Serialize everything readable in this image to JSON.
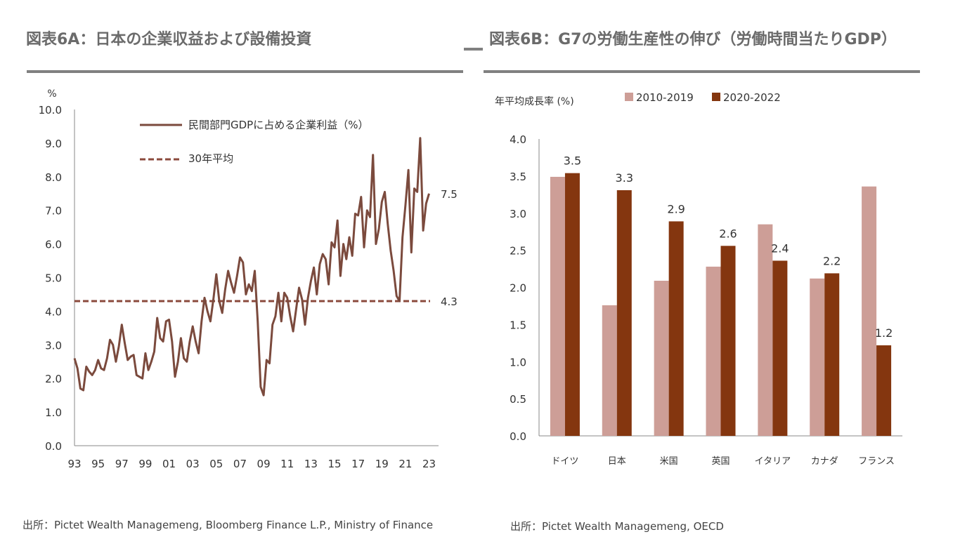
{
  "left_panel": {
    "title": "図表6A：日本の企業収益および設備投資",
    "source": "出所：Pictet Wealth Managemeng, Bloomberg Finance L.P., Ministry of Finance"
  },
  "right_panel": {
    "title": "図表6B：G7の労働生産性の伸び（労働時間当たりGDP）",
    "source": "出所：Pictet Wealth Managemeng, OECD"
  },
  "colors": {
    "line": "#7b4a3d",
    "avg": "#8b4a3c",
    "bar_light": "#cd9e97",
    "bar_dark": "#84360f",
    "axis": "#888888",
    "rule": "#808080"
  },
  "chart_data": [
    {
      "type": "line",
      "title": "",
      "ylabel": "%",
      "ylim": [
        0,
        10
      ],
      "yticks": [
        "0.0",
        "1.0",
        "2.0",
        "3.0",
        "4.0",
        "5.0",
        "6.0",
        "7.0",
        "8.0",
        "9.0",
        "10.0"
      ],
      "xlim": [
        1993,
        2023.8
      ],
      "xticks": [
        "93",
        "95",
        "97",
        "99",
        "01",
        "03",
        "05",
        "07",
        "09",
        "11",
        "13",
        "15",
        "17",
        "19",
        "21",
        "23"
      ],
      "legend_position": "top-left",
      "series": [
        {
          "name": "民間部門GDPに占める企業利益（%）",
          "style": "solid",
          "points": [
            [
              1993.0,
              2.6
            ],
            [
              1993.25,
              2.3
            ],
            [
              1993.5,
              1.7
            ],
            [
              1993.75,
              1.65
            ],
            [
              1994.0,
              2.35
            ],
            [
              1994.25,
              2.2
            ],
            [
              1994.5,
              2.1
            ],
            [
              1994.75,
              2.25
            ],
            [
              1995.0,
              2.55
            ],
            [
              1995.25,
              2.3
            ],
            [
              1995.5,
              2.25
            ],
            [
              1995.75,
              2.6
            ],
            [
              1996.0,
              3.15
            ],
            [
              1996.25,
              3.0
            ],
            [
              1996.5,
              2.5
            ],
            [
              1996.75,
              2.95
            ],
            [
              1997.0,
              3.6
            ],
            [
              1997.25,
              3.05
            ],
            [
              1997.5,
              2.55
            ],
            [
              1997.75,
              2.65
            ],
            [
              1998.0,
              2.7
            ],
            [
              1998.25,
              2.1
            ],
            [
              1998.5,
              2.05
            ],
            [
              1998.75,
              2.0
            ],
            [
              1999.0,
              2.75
            ],
            [
              1999.25,
              2.25
            ],
            [
              1999.5,
              2.5
            ],
            [
              1999.75,
              2.8
            ],
            [
              2000.0,
              3.8
            ],
            [
              2000.25,
              3.2
            ],
            [
              2000.5,
              3.1
            ],
            [
              2000.75,
              3.7
            ],
            [
              2001.0,
              3.75
            ],
            [
              2001.25,
              3.1
            ],
            [
              2001.5,
              2.05
            ],
            [
              2001.75,
              2.5
            ],
            [
              2002.0,
              3.2
            ],
            [
              2002.25,
              2.6
            ],
            [
              2002.5,
              2.5
            ],
            [
              2002.75,
              3.1
            ],
            [
              2003.0,
              3.55
            ],
            [
              2003.25,
              3.1
            ],
            [
              2003.5,
              2.75
            ],
            [
              2003.75,
              3.7
            ],
            [
              2004.0,
              4.4
            ],
            [
              2004.25,
              4.0
            ],
            [
              2004.5,
              3.7
            ],
            [
              2004.75,
              4.35
            ],
            [
              2005.0,
              5.1
            ],
            [
              2005.25,
              4.3
            ],
            [
              2005.5,
              3.95
            ],
            [
              2005.75,
              4.65
            ],
            [
              2006.0,
              5.2
            ],
            [
              2006.25,
              4.85
            ],
            [
              2006.5,
              4.55
            ],
            [
              2006.75,
              5.05
            ],
            [
              2007.0,
              5.6
            ],
            [
              2007.25,
              5.45
            ],
            [
              2007.5,
              4.5
            ],
            [
              2007.75,
              4.8
            ],
            [
              2008.0,
              4.6
            ],
            [
              2008.25,
              5.2
            ],
            [
              2008.5,
              3.7
            ],
            [
              2008.75,
              1.75
            ],
            [
              2009.0,
              1.5
            ],
            [
              2009.25,
              2.55
            ],
            [
              2009.5,
              2.45
            ],
            [
              2009.75,
              3.6
            ],
            [
              2010.0,
              3.85
            ],
            [
              2010.25,
              4.55
            ],
            [
              2010.5,
              3.7
            ],
            [
              2010.75,
              4.55
            ],
            [
              2011.0,
              4.4
            ],
            [
              2011.25,
              3.85
            ],
            [
              2011.5,
              3.4
            ],
            [
              2011.75,
              4.05
            ],
            [
              2012.0,
              4.7
            ],
            [
              2012.25,
              4.35
            ],
            [
              2012.5,
              3.6
            ],
            [
              2012.75,
              4.4
            ],
            [
              2013.0,
              4.9
            ],
            [
              2013.25,
              5.3
            ],
            [
              2013.5,
              4.5
            ],
            [
              2013.75,
              5.4
            ],
            [
              2014.0,
              5.7
            ],
            [
              2014.25,
              5.55
            ],
            [
              2014.5,
              4.8
            ],
            [
              2014.75,
              6.05
            ],
            [
              2015.0,
              5.9
            ],
            [
              2015.25,
              6.7
            ],
            [
              2015.5,
              5.05
            ],
            [
              2015.75,
              6.0
            ],
            [
              2016.0,
              5.55
            ],
            [
              2016.25,
              6.2
            ],
            [
              2016.5,
              5.65
            ],
            [
              2016.75,
              6.9
            ],
            [
              2017.0,
              6.85
            ],
            [
              2017.25,
              7.4
            ],
            [
              2017.5,
              5.9
            ],
            [
              2017.75,
              7.0
            ],
            [
              2018.0,
              6.8
            ],
            [
              2018.25,
              8.65
            ],
            [
              2018.5,
              6.0
            ],
            [
              2018.75,
              6.45
            ],
            [
              2019.0,
              7.25
            ],
            [
              2019.25,
              7.55
            ],
            [
              2019.5,
              6.6
            ],
            [
              2019.75,
              5.8
            ],
            [
              2020.0,
              5.2
            ],
            [
              2020.25,
              4.45
            ],
            [
              2020.5,
              4.3
            ],
            [
              2020.75,
              6.2
            ],
            [
              2021.0,
              7.15
            ],
            [
              2021.25,
              8.2
            ],
            [
              2021.5,
              5.75
            ],
            [
              2021.75,
              7.65
            ],
            [
              2022.0,
              7.55
            ],
            [
              2022.25,
              9.15
            ],
            [
              2022.5,
              6.4
            ],
            [
              2022.75,
              7.2
            ],
            [
              2023.0,
              7.5
            ]
          ],
          "end_label": "7.5"
        },
        {
          "name": "30年平均",
          "style": "dashed",
          "constant": 4.3,
          "end_label": "4.3"
        }
      ]
    },
    {
      "type": "bar",
      "title": "",
      "ylabel": "年平均成長率 (%)",
      "ylim": [
        0,
        4
      ],
      "yticks": [
        "0.0",
        "0.5",
        "1.0",
        "1.5",
        "2.0",
        "2.5",
        "3.0",
        "3.5",
        "4.0"
      ],
      "legend_position": "top-center",
      "categories": [
        "ドイツ",
        "日本",
        "米国",
        "英国",
        "イタリア",
        "カナダ",
        "フランス"
      ],
      "series": [
        {
          "name": "2010-2019",
          "values": [
            3.49,
            1.76,
            2.09,
            2.28,
            2.85,
            2.12,
            3.36
          ],
          "labels": [
            "",
            "",
            "",
            "",
            "",
            "",
            ""
          ]
        },
        {
          "name": "2020-2022",
          "values": [
            3.54,
            3.31,
            2.89,
            2.56,
            2.36,
            2.19,
            1.22
          ],
          "labels": [
            "3.5",
            "3.3",
            "2.9",
            "2.6",
            "2.4",
            "2.2",
            "1.2"
          ]
        }
      ]
    }
  ]
}
